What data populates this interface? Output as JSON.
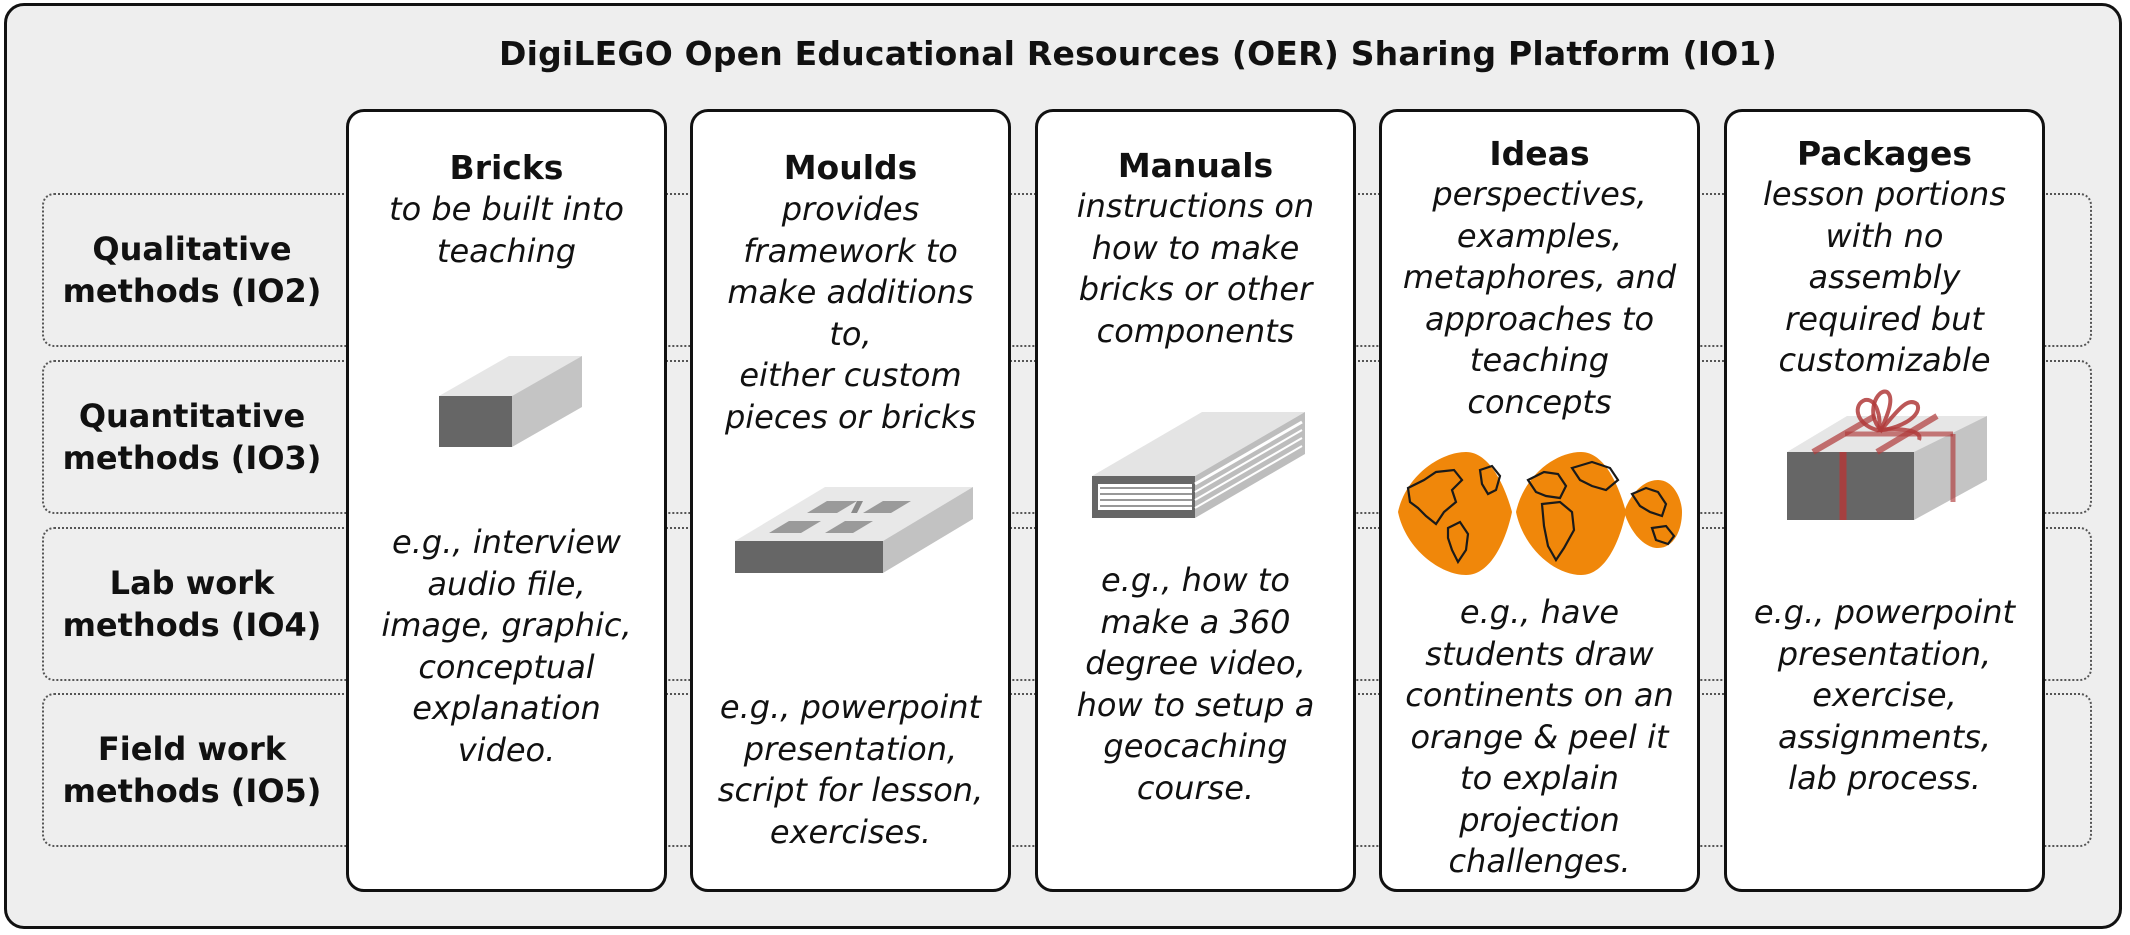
{
  "title": "DigiLEGO Open Educational Resources (OER) Sharing Platform (IO1)",
  "rows": [
    {
      "label": "Qualitative\nmethods (IO2)"
    },
    {
      "label": "Quantitative\nmethods (IO3)"
    },
    {
      "label": "Lab work\nmethods (IO4)"
    },
    {
      "label": "Field work\nmethods (IO5)"
    }
  ],
  "columns": [
    {
      "title": "Bricks",
      "description": "to be built into\nteaching",
      "examples": "e.g., interview\naudio file,\nimage, graphic,\nconceptual\nexplanation\nvideo.",
      "icon": "brick-icon"
    },
    {
      "title": "Moulds",
      "description": "provides\nframework to\nmake additions\nto,\neither custom\npieces or bricks",
      "examples": "e.g., powerpoint\npresentation,\nscript for lesson,\nexercises.",
      "icon": "mould-icon"
    },
    {
      "title": "Manuals",
      "description": "instructions on\nhow to make\nbricks or other\ncomponents",
      "examples": "e.g., how to\nmake a 360\ndegree video,\nhow to setup a\ngeocaching\ncourse.",
      "icon": "book-icon"
    },
    {
      "title": "Ideas",
      "description": "perspectives,\nexamples,\nmetaphores, and\napproaches to\nteaching\nconcepts",
      "examples": "e.g., have\nstudents draw\ncontinents on an\norange & peel it\nto explain\nprojection\nchallenges.",
      "icon": "orange-peel-map-icon"
    },
    {
      "title": "Packages",
      "description": "lesson portions\nwith no\nassembly\nrequired but\ncustomizable",
      "examples": "e.g., powerpoint\npresentation,\nexercise,\nassignments,\nlab process.",
      "icon": "gift-package-icon"
    }
  ],
  "colors": {
    "background": "#eeeeee",
    "card": "#ffffff",
    "brick_dark": "#666666",
    "brick_light": "#d8d8d8",
    "orange": "#f0870a",
    "ribbon": "#b03a3a"
  }
}
